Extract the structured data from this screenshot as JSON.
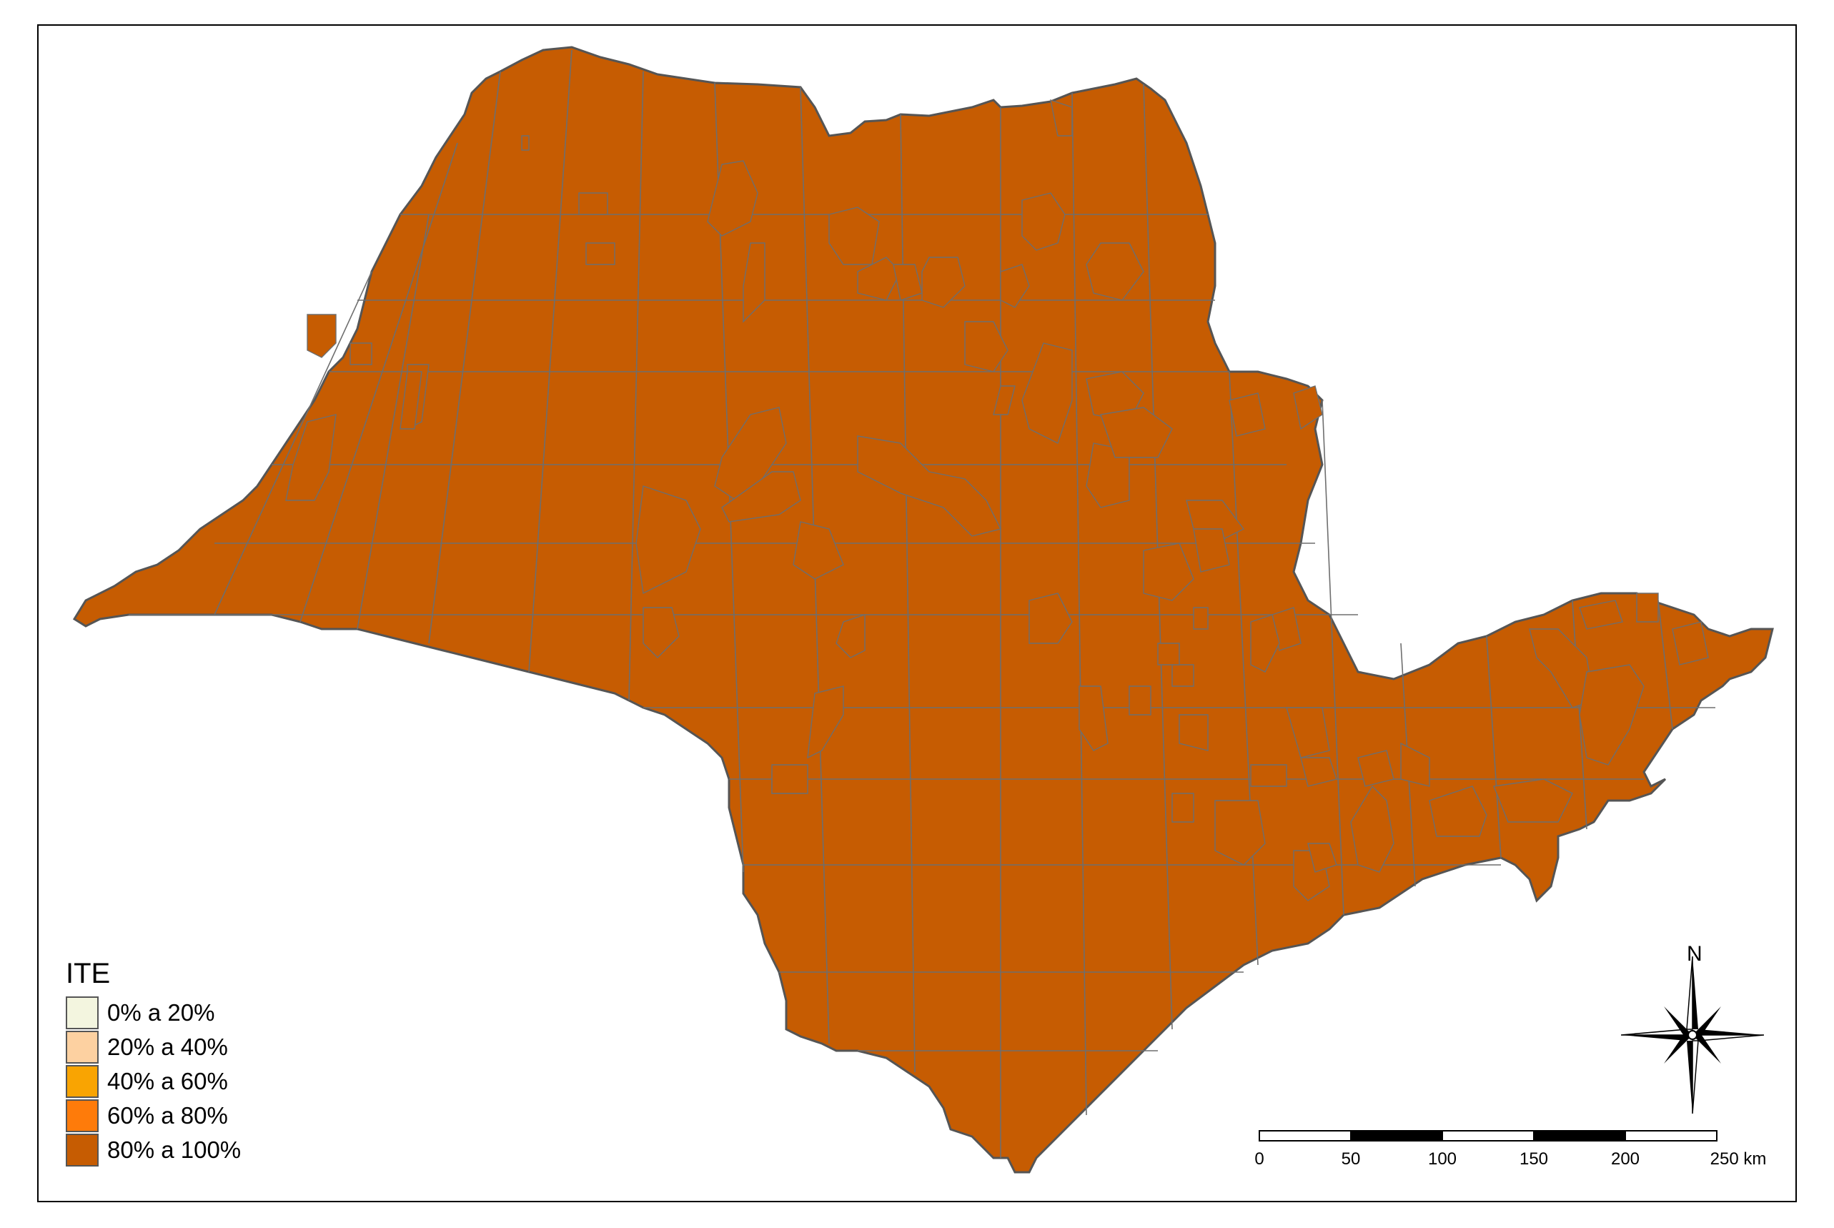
{
  "legend": {
    "title": "ITE",
    "items": [
      {
        "label": "0% a 20%",
        "color": "#f3f5df"
      },
      {
        "label": "20% a 40%",
        "color": "#fdd1a1"
      },
      {
        "label": "40% a 60%",
        "color": "#f9a402"
      },
      {
        "label": "60% a 80%",
        "color": "#fe7b0a"
      },
      {
        "label": "80% a 100%",
        "color": "#c65c02"
      }
    ]
  },
  "north_arrow": {
    "label": "N"
  },
  "scale_bar": {
    "ticks": [
      "0",
      "50",
      "100",
      "150",
      "200",
      "250 km"
    ]
  }
}
